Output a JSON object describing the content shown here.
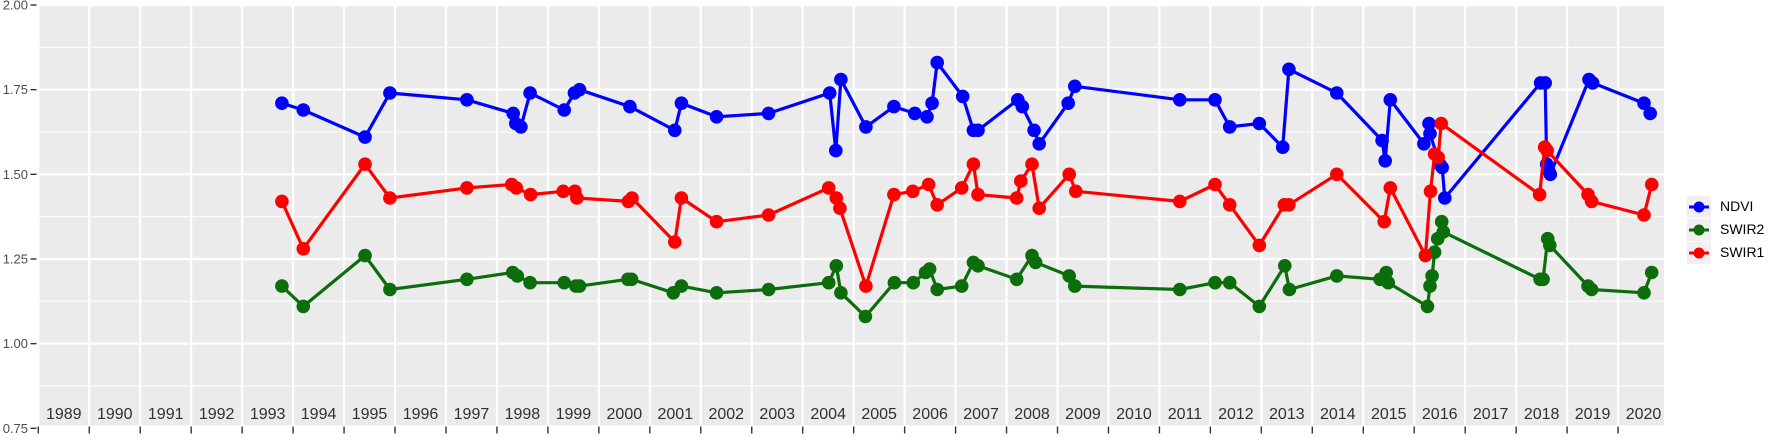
{
  "chart_data": {
    "type": "line",
    "title": "",
    "xlabel": "",
    "ylabel": "",
    "grid": "on",
    "legend_position": "right-center",
    "x_axis": {
      "ticks": [
        1989,
        1990,
        1991,
        1992,
        1993,
        1994,
        1995,
        1996,
        1997,
        1998,
        1999,
        2000,
        2001,
        2002,
        2003,
        2004,
        2005,
        2006,
        2007,
        2008,
        2009,
        2010,
        2011,
        2012,
        2013,
        2014,
        2015,
        2016,
        2017,
        2018,
        2019,
        2020
      ],
      "range": [
        1988.97,
        2020.92
      ]
    },
    "y_axis": {
      "tick_labels": [
        "2.00",
        "1.75",
        "1.50",
        "1.25",
        "1.00",
        "0.75"
      ],
      "tick_values": [
        2.0,
        1.75,
        1.5,
        1.25,
        1.0,
        0.75
      ],
      "minor_tick_values": [
        1.875,
        1.625,
        1.375,
        1.125,
        0.875
      ],
      "range": [
        0.75,
        2.0
      ]
    },
    "legend_items": [
      {
        "label": "NDVI",
        "color": "#0000FF"
      },
      {
        "label": "SWIR2",
        "color": "#0B6E0B"
      },
      {
        "label": "SWIR1",
        "color": "#FF0000"
      }
    ],
    "style": {
      "panel_bg": "#EBEBEB",
      "grid_color": "#FFFFFF",
      "legend_key_bg": "#F0F0F0",
      "y_axis_text_color": "#4D4D4D",
      "x_axis_text_color": "#303030",
      "tick_mark_color": "#333333"
    },
    "series": [
      {
        "name": "NDVI",
        "color": "#0000FF",
        "points": [
          [
            1993.78,
            1.71
          ],
          [
            1994.2,
            1.69
          ],
          [
            1995.41,
            1.61
          ],
          [
            1995.9,
            1.74
          ],
          [
            1997.41,
            1.72
          ],
          [
            1998.32,
            1.68
          ],
          [
            1998.37,
            1.65
          ],
          [
            1998.47,
            1.64
          ],
          [
            1998.65,
            1.74
          ],
          [
            1999.32,
            1.69
          ],
          [
            1999.52,
            1.74
          ],
          [
            1999.62,
            1.75
          ],
          [
            2000.61,
            1.7
          ],
          [
            2001.49,
            1.63
          ],
          [
            2001.62,
            1.71
          ],
          [
            2002.31,
            1.67
          ],
          [
            2003.33,
            1.68
          ],
          [
            2004.53,
            1.74
          ],
          [
            2004.65,
            1.57
          ],
          [
            2004.75,
            1.78
          ],
          [
            2005.24,
            1.64
          ],
          [
            2005.79,
            1.7
          ],
          [
            2006.2,
            1.68
          ],
          [
            2006.44,
            1.67
          ],
          [
            2006.54,
            1.71
          ],
          [
            2006.64,
            1.83
          ],
          [
            2007.14,
            1.73
          ],
          [
            2007.35,
            1.63
          ],
          [
            2007.44,
            1.63
          ],
          [
            2008.22,
            1.72
          ],
          [
            2008.31,
            1.7
          ],
          [
            2008.54,
            1.63
          ],
          [
            2008.64,
            1.59
          ],
          [
            2009.21,
            1.71
          ],
          [
            2009.34,
            1.76
          ],
          [
            2011.4,
            1.72
          ],
          [
            2012.09,
            1.72
          ],
          [
            2012.38,
            1.64
          ],
          [
            2012.96,
            1.65
          ],
          [
            2013.42,
            1.58
          ],
          [
            2013.54,
            1.81
          ],
          [
            2014.48,
            1.74
          ],
          [
            2015.37,
            1.6
          ],
          [
            2015.43,
            1.54
          ],
          [
            2015.53,
            1.72
          ],
          [
            2016.19,
            1.59
          ],
          [
            2016.29,
            1.65
          ],
          [
            2016.31,
            1.62
          ],
          [
            2016.5,
            1.53
          ],
          [
            2016.55,
            1.52
          ],
          [
            2016.6,
            1.43
          ],
          [
            2018.48,
            1.77
          ],
          [
            2018.57,
            1.77
          ],
          [
            2018.6,
            1.53
          ],
          [
            2018.64,
            1.51
          ],
          [
            2018.67,
            1.5
          ],
          [
            2019.43,
            1.78
          ],
          [
            2019.5,
            1.77
          ],
          [
            2020.51,
            1.71
          ],
          [
            2020.63,
            1.68
          ]
        ]
      },
      {
        "name": "SWIR2",
        "color": "#0B6E0B",
        "points": [
          [
            1993.78,
            1.17
          ],
          [
            1994.2,
            1.11
          ],
          [
            1995.41,
            1.26
          ],
          [
            1995.9,
            1.16
          ],
          [
            1997.41,
            1.19
          ],
          [
            1998.31,
            1.21
          ],
          [
            1998.4,
            1.2
          ],
          [
            1998.65,
            1.18
          ],
          [
            1999.32,
            1.18
          ],
          [
            1999.55,
            1.17
          ],
          [
            1999.62,
            1.17
          ],
          [
            2000.57,
            1.19
          ],
          [
            2000.64,
            1.19
          ],
          [
            2001.46,
            1.15
          ],
          [
            2001.62,
            1.17
          ],
          [
            2002.31,
            1.15
          ],
          [
            2003.33,
            1.16
          ],
          [
            2004.51,
            1.18
          ],
          [
            2004.66,
            1.23
          ],
          [
            2004.75,
            1.15
          ],
          [
            2005.23,
            1.08
          ],
          [
            2005.8,
            1.18
          ],
          [
            2006.17,
            1.18
          ],
          [
            2006.41,
            1.21
          ],
          [
            2006.49,
            1.22
          ],
          [
            2006.64,
            1.16
          ],
          [
            2007.12,
            1.17
          ],
          [
            2007.35,
            1.24
          ],
          [
            2007.44,
            1.23
          ],
          [
            2008.2,
            1.19
          ],
          [
            2008.5,
            1.26
          ],
          [
            2008.57,
            1.24
          ],
          [
            2009.23,
            1.2
          ],
          [
            2009.34,
            1.17
          ],
          [
            2011.4,
            1.16
          ],
          [
            2012.09,
            1.18
          ],
          [
            2012.38,
            1.18
          ],
          [
            2012.96,
            1.11
          ],
          [
            2013.46,
            1.23
          ],
          [
            2013.55,
            1.16
          ],
          [
            2014.48,
            1.2
          ],
          [
            2015.33,
            1.19
          ],
          [
            2015.45,
            1.21
          ],
          [
            2015.49,
            1.18
          ],
          [
            2016.26,
            1.11
          ],
          [
            2016.31,
            1.17
          ],
          [
            2016.35,
            1.2
          ],
          [
            2016.4,
            1.27
          ],
          [
            2016.46,
            1.31
          ],
          [
            2016.54,
            1.36
          ],
          [
            2016.57,
            1.33
          ],
          [
            2018.47,
            1.19
          ],
          [
            2018.53,
            1.19
          ],
          [
            2018.62,
            1.31
          ],
          [
            2018.66,
            1.29
          ],
          [
            2019.41,
            1.17
          ],
          [
            2019.48,
            1.16
          ],
          [
            2020.51,
            1.15
          ],
          [
            2020.66,
            1.21
          ]
        ]
      },
      {
        "name": "SWIR1",
        "color": "#FF0000",
        "points": [
          [
            1993.78,
            1.42
          ],
          [
            1994.2,
            1.28
          ],
          [
            1995.41,
            1.53
          ],
          [
            1995.9,
            1.43
          ],
          [
            1997.41,
            1.46
          ],
          [
            1998.29,
            1.47
          ],
          [
            1998.38,
            1.46
          ],
          [
            1998.66,
            1.44
          ],
          [
            1999.3,
            1.45
          ],
          [
            1999.53,
            1.45
          ],
          [
            1999.57,
            1.43
          ],
          [
            2000.58,
            1.42
          ],
          [
            2000.65,
            1.43
          ],
          [
            2001.49,
            1.3
          ],
          [
            2001.62,
            1.43
          ],
          [
            2002.31,
            1.36
          ],
          [
            2003.33,
            1.38
          ],
          [
            2004.51,
            1.46
          ],
          [
            2004.66,
            1.43
          ],
          [
            2004.73,
            1.4
          ],
          [
            2005.24,
            1.17
          ],
          [
            2005.79,
            1.44
          ],
          [
            2006.16,
            1.45
          ],
          [
            2006.47,
            1.47
          ],
          [
            2006.64,
            1.41
          ],
          [
            2007.12,
            1.46
          ],
          [
            2007.35,
            1.53
          ],
          [
            2007.44,
            1.44
          ],
          [
            2008.2,
            1.43
          ],
          [
            2008.28,
            1.48
          ],
          [
            2008.5,
            1.53
          ],
          [
            2008.64,
            1.4
          ],
          [
            2009.23,
            1.5
          ],
          [
            2009.36,
            1.45
          ],
          [
            2011.4,
            1.42
          ],
          [
            2012.09,
            1.47
          ],
          [
            2012.38,
            1.41
          ],
          [
            2012.96,
            1.29
          ],
          [
            2013.45,
            1.41
          ],
          [
            2013.54,
            1.41
          ],
          [
            2014.48,
            1.5
          ],
          [
            2015.41,
            1.36
          ],
          [
            2015.53,
            1.46
          ],
          [
            2016.22,
            1.26
          ],
          [
            2016.32,
            1.45
          ],
          [
            2016.4,
            1.56
          ],
          [
            2016.47,
            1.55
          ],
          [
            2016.53,
            1.65
          ],
          [
            2018.46,
            1.44
          ],
          [
            2018.56,
            1.58
          ],
          [
            2018.61,
            1.57
          ],
          [
            2019.41,
            1.44
          ],
          [
            2019.48,
            1.42
          ],
          [
            2020.51,
            1.38
          ],
          [
            2020.66,
            1.47
          ]
        ]
      }
    ]
  }
}
